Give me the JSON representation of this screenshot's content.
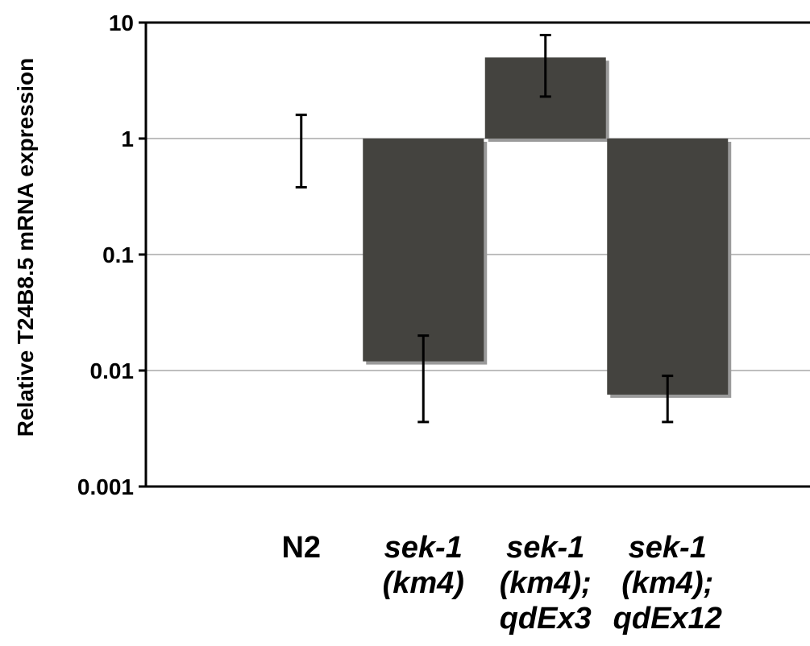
{
  "chart_data": {
    "type": "bar",
    "title": "",
    "xlabel": "",
    "ylabel": "Relative T24B8.5 mRNA expression",
    "yscale": "log",
    "ylim": [
      0.001,
      10
    ],
    "baseline": 1,
    "yticks": [
      "10",
      "1",
      "0.1",
      "0.01",
      "0.001"
    ],
    "grid": true,
    "categories": [
      {
        "lines": [
          "N2"
        ],
        "italic": false
      },
      {
        "lines": [
          "sek-1",
          "(km4)"
        ],
        "italic": true
      },
      {
        "lines": [
          "sek-1",
          "(km4);",
          "qdEx3"
        ],
        "italic": true
      },
      {
        "lines": [
          "sek-1",
          "(km4);",
          "qdEx12"
        ],
        "italic": true
      }
    ],
    "values": [
      1,
      0.012,
      5,
      0.0062
    ],
    "error_low": [
      0.38,
      0.0036,
      2.3,
      0.0036
    ],
    "error_high": [
      1.6,
      0.02,
      7.8,
      0.009
    ],
    "colors": {
      "bar": "#44433f",
      "shadow": "#9a9a9a",
      "grid": "#a8a8a8",
      "axis": "#000000"
    }
  }
}
